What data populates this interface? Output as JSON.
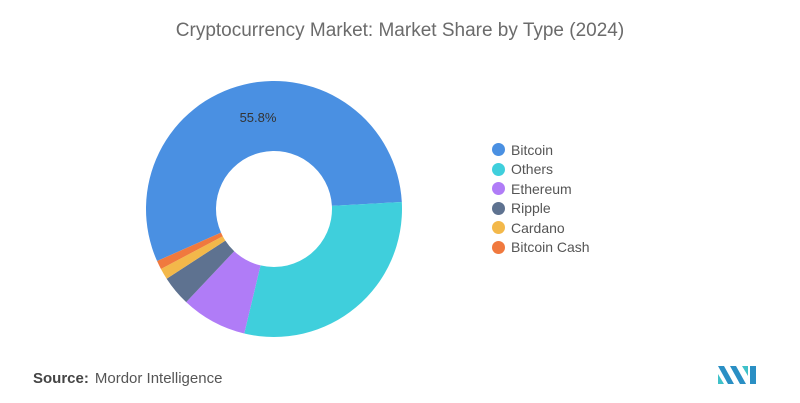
{
  "title": "Cryptocurrency Market: Market Share by Type (2024)",
  "source_label": "Source:",
  "source_value": "Mordor Intelligence",
  "chart_data": {
    "type": "pie",
    "variant": "donut",
    "title": "Cryptocurrency Market: Market Share by Type (2024)",
    "legend_position": "right",
    "series": [
      {
        "name": "Bitcoin",
        "value": 55.8,
        "color": "#4a90e2",
        "label": "55.8%"
      },
      {
        "name": "Others",
        "value": 29.6,
        "color": "#3fcfdc"
      },
      {
        "name": "Ethereum",
        "value": 8.3,
        "color": "#b07cf7"
      },
      {
        "name": "Ripple",
        "value": 3.8,
        "color": "#5e7290"
      },
      {
        "name": "Cardano",
        "value": 1.4,
        "color": "#f3b84a"
      },
      {
        "name": "Bitcoin Cash",
        "value": 1.1,
        "color": "#f0793e"
      }
    ]
  }
}
